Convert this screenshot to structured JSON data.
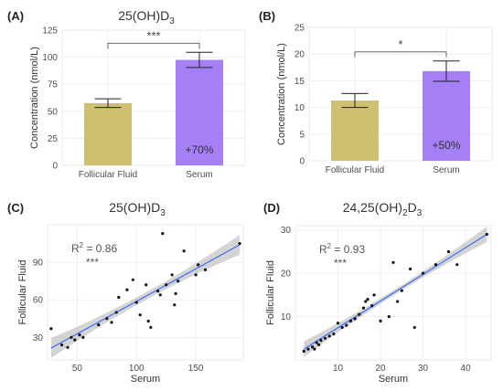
{
  "chart_data": [
    {
      "panel": "(A)",
      "type": "bar",
      "title_main": "25(OH)D",
      "title_sub": "3",
      "ylabel": "Concentration (nmol/L)",
      "xlabel": "",
      "categories": [
        "Follicular Fluid",
        "Serum"
      ],
      "values": [
        57.5,
        97.5
      ],
      "errors": [
        4,
        7
      ],
      "ylim": [
        0,
        125
      ],
      "yticks": [
        0,
        25,
        50,
        75,
        100,
        125
      ],
      "colors": [
        "#CFC071",
        "#A57FF5"
      ],
      "bar_labels": [
        "",
        "+70%"
      ],
      "significance": "***",
      "grid": true
    },
    {
      "panel": "(B)",
      "type": "bar",
      "title_main": "",
      "title_sub": "",
      "ylabel": "Concentration (nmol/L)",
      "xlabel": "",
      "categories": [
        "Follicular Fluid",
        "Serum"
      ],
      "values": [
        11.3,
        16.8
      ],
      "errors": [
        1.3,
        1.9
      ],
      "ylim": [
        0,
        25
      ],
      "yticks": [
        0,
        5,
        10,
        15,
        20,
        25
      ],
      "colors": [
        "#CFC071",
        "#A57FF5"
      ],
      "bar_labels": [
        "",
        "+50%"
      ],
      "significance": "*",
      "grid": true
    },
    {
      "panel": "(C)",
      "type": "scatter",
      "title_main": "25(OH)D",
      "title_sub": "3",
      "xlabel": "Serum",
      "ylabel": "Follicular Fluid",
      "xlim": [
        25,
        190
      ],
      "ylim": [
        12,
        120
      ],
      "xticks": [
        50,
        100,
        150
      ],
      "yticks": [
        30,
        60,
        90
      ],
      "r2_label": "R",
      "r2_sup": "2",
      "r2_value": " = 0.86",
      "significance": "***",
      "fit": {
        "x": [
          28,
          187
        ],
        "y": [
          21.5,
          104
        ]
      },
      "band_half_width": {
        "ends": 8,
        "middle": 3
      },
      "x": [
        28,
        37,
        42,
        45,
        48,
        52,
        55,
        68,
        75,
        79,
        83,
        85,
        92,
        97,
        100,
        103,
        108,
        110,
        112,
        118,
        120,
        122,
        125,
        130,
        132,
        133,
        135,
        140,
        150,
        152,
        158,
        187
      ],
      "y": [
        37,
        24,
        22,
        30,
        28,
        32,
        30,
        40,
        45,
        42,
        50,
        62,
        68,
        76,
        58,
        48,
        72,
        43,
        38,
        67,
        64,
        113,
        72,
        80,
        56,
        65,
        75,
        99,
        80,
        88,
        84,
        105
      ]
    },
    {
      "panel": "(D)",
      "type": "scatter",
      "title_main": "24,25(OH)",
      "title_sub": "2",
      "title_tail": "D",
      "title_sub2": "3",
      "xlabel": "Serum",
      "ylabel": "Follicular Fluid",
      "xlim": [
        0,
        46
      ],
      "ylim": [
        0,
        31
      ],
      "xticks": [
        10,
        20,
        30,
        40
      ],
      "yticks": [
        10,
        20,
        30
      ],
      "r2_label": "R",
      "r2_sup": "2",
      "r2_value": " = 0.93",
      "significance": "***",
      "fit": {
        "x": [
          2,
          45
        ],
        "y": [
          2.5,
          29
        ]
      },
      "band_half_width": {
        "ends": 1.8,
        "middle": 0.6
      },
      "x": [
        2,
        3,
        4,
        4.5,
        5,
        5.5,
        6,
        7,
        8,
        9,
        10,
        11,
        12,
        13,
        14,
        15,
        16,
        16.5,
        17,
        18,
        18.5,
        20,
        22,
        23,
        24,
        25,
        27,
        28,
        30,
        33,
        36,
        38,
        45
      ],
      "y": [
        2,
        2.5,
        3,
        2.5,
        4,
        3.5,
        4.5,
        5,
        5.5,
        6,
        8.5,
        7.5,
        8,
        9,
        9.5,
        10.5,
        12,
        13.5,
        14,
        12.5,
        15,
        9,
        10,
        22.5,
        13.5,
        16,
        21,
        7.5,
        20,
        22,
        25,
        22,
        29
      ]
    }
  ]
}
